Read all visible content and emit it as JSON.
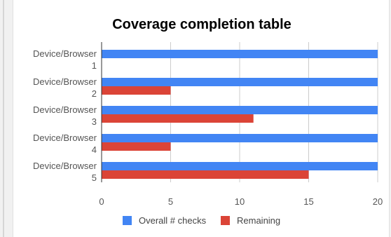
{
  "chart_data": {
    "type": "bar",
    "orientation": "horizontal",
    "title": "Coverage completion table",
    "categories": [
      [
        "Device/Browser",
        "1"
      ],
      [
        "Device/Browser",
        "2"
      ],
      [
        "Device/Browser",
        "3"
      ],
      [
        "Device/Browser",
        "4"
      ],
      [
        "Device/Browser",
        "5"
      ]
    ],
    "series": [
      {
        "name": "Overall # checks",
        "color": "#4285f4",
        "values": [
          20,
          20,
          20,
          20,
          20
        ]
      },
      {
        "name": "Remaining",
        "color": "#db4437",
        "values": [
          0,
          5,
          11,
          5,
          15
        ]
      }
    ],
    "xlim": [
      0,
      20
    ],
    "xticks": [
      "0",
      "5",
      "10",
      "15",
      "20"
    ],
    "grid": true,
    "legend_position": "bottom"
  }
}
